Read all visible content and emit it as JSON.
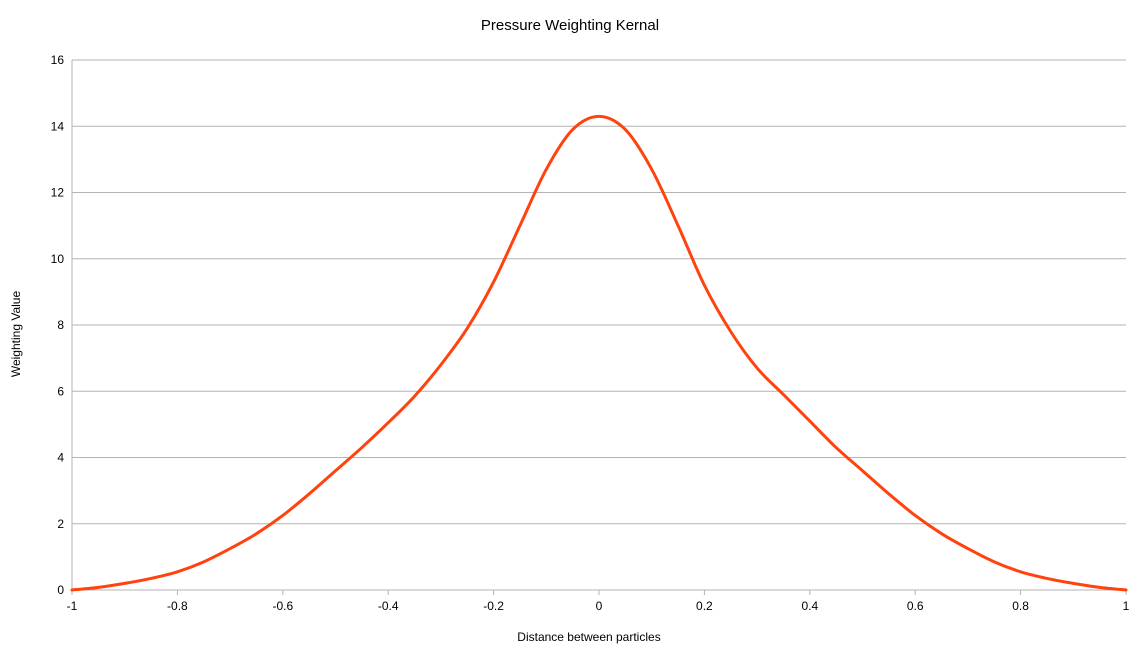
{
  "chart_data": {
    "type": "line",
    "title": "Pressure Weighting Kernal",
    "xlabel": "Distance between particles",
    "ylabel": "Weighting Value",
    "xlim": [
      -1,
      1
    ],
    "ylim": [
      0,
      16
    ],
    "xticks": [
      -1,
      -0.8,
      -0.6,
      -0.4,
      -0.2,
      0,
      0.2,
      0.4,
      0.6,
      0.8,
      1
    ],
    "xtick_labels": [
      "-1",
      "-0.8",
      "-0.6",
      "-0.4",
      "-0.2",
      "0",
      "0.2",
      "0.4",
      "0.6",
      "0.8",
      "1"
    ],
    "yticks": [
      0,
      2,
      4,
      6,
      8,
      10,
      12,
      14,
      16
    ],
    "ytick_labels": [
      "0",
      "2",
      "4",
      "6",
      "8",
      "10",
      "12",
      "14",
      "16"
    ],
    "grid": "horizontal",
    "legend": "none",
    "series": [
      {
        "color": "#ff420e",
        "x": [
          -1,
          -0.95,
          -0.9,
          -0.85,
          -0.8,
          -0.75,
          -0.7,
          -0.65,
          -0.6,
          -0.55,
          -0.5,
          -0.45,
          -0.4,
          -0.35,
          -0.3,
          -0.25,
          -0.2,
          -0.15,
          -0.1,
          -0.05,
          0,
          0.05,
          0.1,
          0.15,
          0.2,
          0.25,
          0.3,
          0.35,
          0.4,
          0.45,
          0.5,
          0.55,
          0.6,
          0.65,
          0.7,
          0.75,
          0.8,
          0.85,
          0.9,
          0.95,
          1
        ],
        "y": [
          0,
          0.08,
          0.2,
          0.35,
          0.55,
          0.85,
          1.25,
          1.7,
          2.25,
          2.9,
          3.6,
          4.3,
          5.05,
          5.85,
          6.8,
          7.9,
          9.3,
          11.0,
          12.7,
          13.9,
          14.3,
          13.9,
          12.7,
          11.0,
          9.2,
          7.8,
          6.7,
          5.9,
          5.1,
          4.3,
          3.6,
          2.9,
          2.25,
          1.7,
          1.25,
          0.85,
          0.55,
          0.35,
          0.2,
          0.08,
          0
        ]
      }
    ]
  }
}
